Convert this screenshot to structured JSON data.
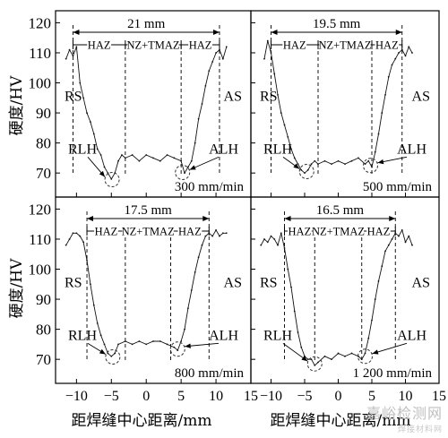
{
  "figure": {
    "y_axis_label": "硬度/HV",
    "x_axis_label": "距焊缝中心距离/mm",
    "watermark": "嘉峪检测网",
    "watermark_sub": "焊接材料网"
  },
  "chart_data": [
    {
      "type": "line",
      "speed_label": "300 mm/min",
      "width_label": "21 mm",
      "zones": [
        "HAZ",
        "NZ+TMAZ",
        "HAZ"
      ],
      "zone_boundaries_x": [
        -10.5,
        -3,
        5,
        10.5
      ],
      "side_labels": [
        "RS",
        "AS"
      ],
      "low_hardness_labels": [
        "RLH",
        "ALH"
      ],
      "low_hardness_points": [
        [
          -4.9,
          67.8
        ],
        [
          5.2,
          70.2
        ]
      ],
      "ylim": [
        62,
        124
      ],
      "yticks": [
        70,
        80,
        90,
        100,
        110,
        120
      ],
      "xlim": [
        -13,
        15
      ],
      "xticks": [
        -10,
        -5,
        0,
        5,
        10,
        15
      ],
      "x": [
        -11.5,
        -11,
        -10.5,
        -10,
        -9.5,
        -9,
        -8.5,
        -8,
        -7.5,
        -7,
        -6.5,
        -6,
        -5.5,
        -5,
        -4.5,
        -4,
        -3.5,
        -3,
        -2,
        -1,
        0,
        1,
        2,
        3,
        4,
        5,
        5.5,
        6,
        6.5,
        7,
        7.5,
        8,
        8.5,
        9,
        9.5,
        10,
        10.5,
        11,
        11.5
      ],
      "y": [
        108,
        111,
        109,
        112,
        100,
        95,
        90,
        87,
        83,
        78,
        76,
        72,
        70,
        68,
        70,
        74,
        76,
        75,
        76,
        74,
        76,
        75,
        74,
        76,
        75,
        74,
        70,
        72,
        74,
        80,
        88,
        93,
        99,
        104,
        107,
        110,
        111,
        108,
        112
      ]
    },
    {
      "type": "line",
      "speed_label": "500 mm/min",
      "width_label": "19.5 mm",
      "zones": [
        "HAZ",
        "NZ+TMAZ",
        "HAZ"
      ],
      "zone_boundaries_x": [
        -10,
        -3,
        5,
        9.5
      ],
      "side_labels": [
        "RS",
        "AS"
      ],
      "low_hardness_labels": [
        "RLH",
        "ALH"
      ],
      "low_hardness_points": [
        [
          -4.7,
          70.5
        ],
        [
          4.8,
          72.5
        ]
      ],
      "ylim": [
        62,
        124
      ],
      "yticks": [
        70,
        80,
        90,
        100,
        110,
        120
      ],
      "xlim": [
        -13,
        15
      ],
      "xticks": [
        -10,
        -5,
        0,
        5,
        10,
        15
      ],
      "x": [
        -11,
        -10.5,
        -10,
        -9.5,
        -9,
        -8.5,
        -8,
        -7.5,
        -7,
        -6.5,
        -6,
        -5.5,
        -5,
        -4.5,
        -4,
        -3.5,
        -3,
        -2,
        -1,
        0,
        1,
        2,
        3,
        4,
        4.5,
        5,
        5.5,
        6,
        6.5,
        7,
        7.5,
        8,
        8.5,
        9,
        9.5,
        10,
        10.5,
        11
      ],
      "y": [
        108,
        114,
        110,
        103,
        96,
        90,
        86,
        82,
        78,
        75,
        73,
        71,
        70,
        71,
        73,
        74,
        73,
        74,
        73,
        74,
        73,
        74,
        75,
        73,
        74,
        72,
        77,
        83,
        90,
        96,
        102,
        106,
        108,
        110,
        111,
        109,
        112,
        110
      ]
    },
    {
      "type": "line",
      "speed_label": "800 mm/min",
      "width_label": "17.5 mm",
      "zones": [
        "HAZ",
        "NZ+TMAZ",
        "HAZ"
      ],
      "zone_boundaries_x": [
        -8.5,
        -3,
        3.5,
        9
      ],
      "side_labels": [
        "RS",
        "AS"
      ],
      "low_hardness_labels": [
        "RLH",
        "ALH"
      ],
      "low_hardness_points": [
        [
          -4.8,
          70.8
        ],
        [
          4.5,
          73.4
        ]
      ],
      "ylim": [
        62,
        124
      ],
      "yticks": [
        70,
        80,
        90,
        100,
        110,
        120
      ],
      "xlim": [
        -13,
        15
      ],
      "xticks": [
        -10,
        -5,
        0,
        5,
        10,
        15
      ],
      "x": [
        -11.5,
        -11,
        -10.5,
        -10,
        -9.5,
        -9,
        -8.5,
        -8,
        -7.5,
        -7,
        -6.5,
        -6,
        -5.5,
        -5,
        -4.5,
        -4,
        -3,
        -2,
        -1,
        0,
        1,
        2,
        3,
        4,
        4.5,
        5,
        5.5,
        6,
        6.5,
        7,
        7.5,
        8,
        8.5,
        9,
        9.5,
        10,
        10.5,
        11,
        11.5
      ],
      "y": [
        108,
        110,
        112,
        112,
        111,
        109,
        103,
        95,
        88,
        82,
        78,
        75,
        72,
        71,
        72,
        75,
        76,
        75,
        76,
        75,
        76,
        76,
        75,
        74,
        73,
        76,
        80,
        87,
        93,
        99,
        104,
        108,
        111,
        112,
        111,
        113,
        111,
        112,
        112
      ]
    },
    {
      "type": "line",
      "speed_label": "1 200 mm/min",
      "width_label": "16.5 mm",
      "zones": [
        "HAZ",
        "NZ+TMAZ",
        "HAZ"
      ],
      "zone_boundaries_x": [
        -8,
        -3.5,
        3.5,
        8.5
      ],
      "side_labels": [
        "RS",
        "AS"
      ],
      "low_hardness_labels": [
        "RLH",
        "ALH"
      ],
      "low_hardness_points": [
        [
          -3.5,
          68.5
        ],
        [
          4,
          71
        ]
      ],
      "ylim": [
        62,
        124
      ],
      "yticks": [
        70,
        80,
        90,
        100,
        110,
        120
      ],
      "xlim": [
        -13,
        15
      ],
      "xticks": [
        -10,
        -5,
        0,
        5,
        10,
        15
      ],
      "x": [
        -11.5,
        -11,
        -10.5,
        -10,
        -9.5,
        -9,
        -8.5,
        -8,
        -7.5,
        -7,
        -6.5,
        -6,
        -5.5,
        -5,
        -4.5,
        -4,
        -3.5,
        -3,
        -2,
        -1,
        0,
        1,
        2,
        3,
        3.5,
        4,
        4.5,
        5,
        5.5,
        6,
        6.5,
        7,
        7.5,
        8,
        8.5,
        9,
        9.5,
        10,
        10.5,
        11
      ],
      "y": [
        108,
        110,
        109,
        111,
        110,
        108,
        112,
        107,
        100,
        94,
        86,
        79,
        74,
        71,
        70,
        70,
        68,
        69,
        71,
        70,
        72,
        71,
        72,
        71,
        70,
        72,
        77,
        83,
        90,
        96,
        101,
        106,
        108,
        110,
        112,
        111,
        113,
        109,
        111,
        108
      ]
    }
  ]
}
